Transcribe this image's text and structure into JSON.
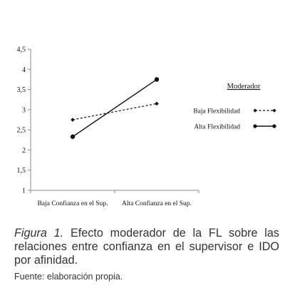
{
  "chart_data": {
    "type": "line",
    "title": "",
    "xlabel": "",
    "ylabel": "",
    "categories": [
      "Baja Confianza en el Sup.",
      "Alta Confianza en el Sup."
    ],
    "ylim": [
      1,
      4.5
    ],
    "yticks": [
      "1",
      "1,5",
      "2",
      "2,5",
      "3",
      "3,5",
      "4",
      "4,5"
    ],
    "series": [
      {
        "name": "Baja Flexibilidad",
        "values": [
          2.75,
          3.15
        ],
        "line_style": "dashed",
        "marker": "diamond"
      },
      {
        "name": "Alta Flexibilidad",
        "values": [
          2.33,
          3.75
        ],
        "line_style": "solid",
        "marker": "circle"
      }
    ],
    "legend": {
      "title": "Moderador",
      "position": "right"
    },
    "grid": false
  },
  "caption": {
    "label": "Figura 1.",
    "text": " Efecto moderador de la FL sobre las relaciones entre confianza en el supervisor e IDO por afinidad."
  },
  "source": "Fuente: elaboración propia.",
  "colors": {
    "ink": "#111111",
    "axis": "#8a8a8a",
    "caption": "#333333"
  }
}
